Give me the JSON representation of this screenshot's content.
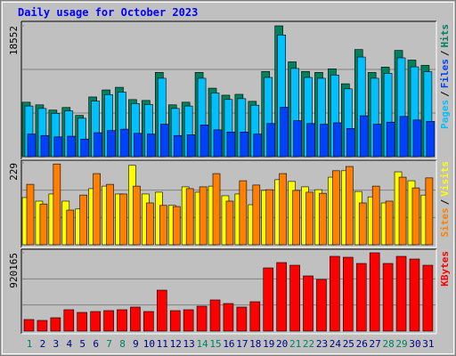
{
  "title": "Daily usage for October 2023",
  "legend_separator": "/",
  "chart_data": [
    {
      "type": "bar",
      "ylim": [
        0,
        18552
      ],
      "yticks": [
        18552
      ],
      "series": [
        {
          "name": "Pages",
          "color": "#00c0ff",
          "values": [
            7179,
            6832,
            6137,
            6484,
            5442,
            7873,
            8800,
            9147,
            7526,
            7410,
            11115,
            6832,
            7179,
            11115,
            9031,
            8105,
            8221,
            7295,
            11232,
            17253,
            12505,
            11232,
            11115,
            11579,
            9611,
            14126,
            11115,
            11810,
            14010,
            12736,
            12042
          ]
        },
        {
          "name": "Files",
          "color": "#0040ff",
          "values": [
            3200,
            3000,
            2800,
            2900,
            2500,
            3400,
            3700,
            3900,
            3300,
            3200,
            4600,
            3000,
            3100,
            4500,
            3800,
            3500,
            3500,
            3200,
            4700,
            7000,
            5100,
            4700,
            4600,
            4800,
            4000,
            5800,
            4600,
            4900,
            5700,
            5200,
            5000
          ]
        },
        {
          "name": "Hits",
          "color": "#00805c",
          "values": [
            7719,
            7346,
            6599,
            6972,
            5852,
            8466,
            9462,
            9836,
            8093,
            7968,
            11952,
            7346,
            7719,
            11952,
            9711,
            8715,
            8840,
            7844,
            12077,
            18552,
            13446,
            12077,
            11952,
            12450,
            10334,
            15189,
            11952,
            12699,
            15065,
            13695,
            12948
          ]
        }
      ]
    },
    {
      "type": "bar",
      "ylim": [
        0,
        229
      ],
      "yticks": [
        229
      ],
      "series": [
        {
          "name": "Sites",
          "color": "#ff8000",
          "values": [
            169,
            114,
            226,
            97,
            139,
            199,
            169,
            142,
            164,
            117,
            110,
            107,
            157,
            162,
            199,
            122,
            179,
            167,
            154,
            199,
            152,
            147,
            144,
            207,
            219,
            117,
            164,
            122,
            189,
            159,
            187
          ]
        },
        {
          "name": "Visits",
          "color": "#ffff00",
          "values": [
            132,
            122,
            142,
            122,
            100,
            157,
            164,
            142,
            222,
            142,
            147,
            110,
            162,
            147,
            164,
            137,
            142,
            112,
            152,
            182,
            177,
            162,
            154,
            189,
            207,
            149,
            134,
            117,
            204,
            179,
            139
          ]
        }
      ]
    },
    {
      "type": "bar",
      "ylim": [
        0,
        920165
      ],
      "yticks": [
        920165
      ],
      "categories": [
        "1",
        "2",
        "3",
        "4",
        "5",
        "6",
        "7",
        "8",
        "9",
        "10",
        "11",
        "12",
        "13",
        "14",
        "15",
        "16",
        "17",
        "18",
        "19",
        "20",
        "21",
        "22",
        "23",
        "24",
        "25",
        "26",
        "27",
        "28",
        "29",
        "30",
        "31"
      ],
      "category_colors": [
        "#00805c",
        "#000080",
        "#000080",
        "#000080",
        "#000080",
        "#000080",
        "#00805c",
        "#00805c",
        "#000080",
        "#000080",
        "#000080",
        "#000080",
        "#000080",
        "#00805c",
        "#00805c",
        "#000080",
        "#000080",
        "#000080",
        "#000080",
        "#000080",
        "#00805c",
        "#00805c",
        "#000080",
        "#000080",
        "#000080",
        "#000080",
        "#000080",
        "#00805c",
        "#00805c",
        "#000080",
        "#000080"
      ],
      "series": [
        {
          "name": "KBytes",
          "color": "#ff0000",
          "values": [
            135933,
            125477,
            156841,
            250945,
            219577,
            230034,
            240490,
            250945,
            282313,
            230034,
            480979,
            240490,
            250945,
            292770,
            365974,
            324138,
            282313,
            345050,
            742378,
            805116,
            773747,
            648278,
            606450,
            878301,
            867845,
            794660,
            920165,
            794660,
            878301,
            846936,
            773747
          ]
        }
      ]
    }
  ]
}
